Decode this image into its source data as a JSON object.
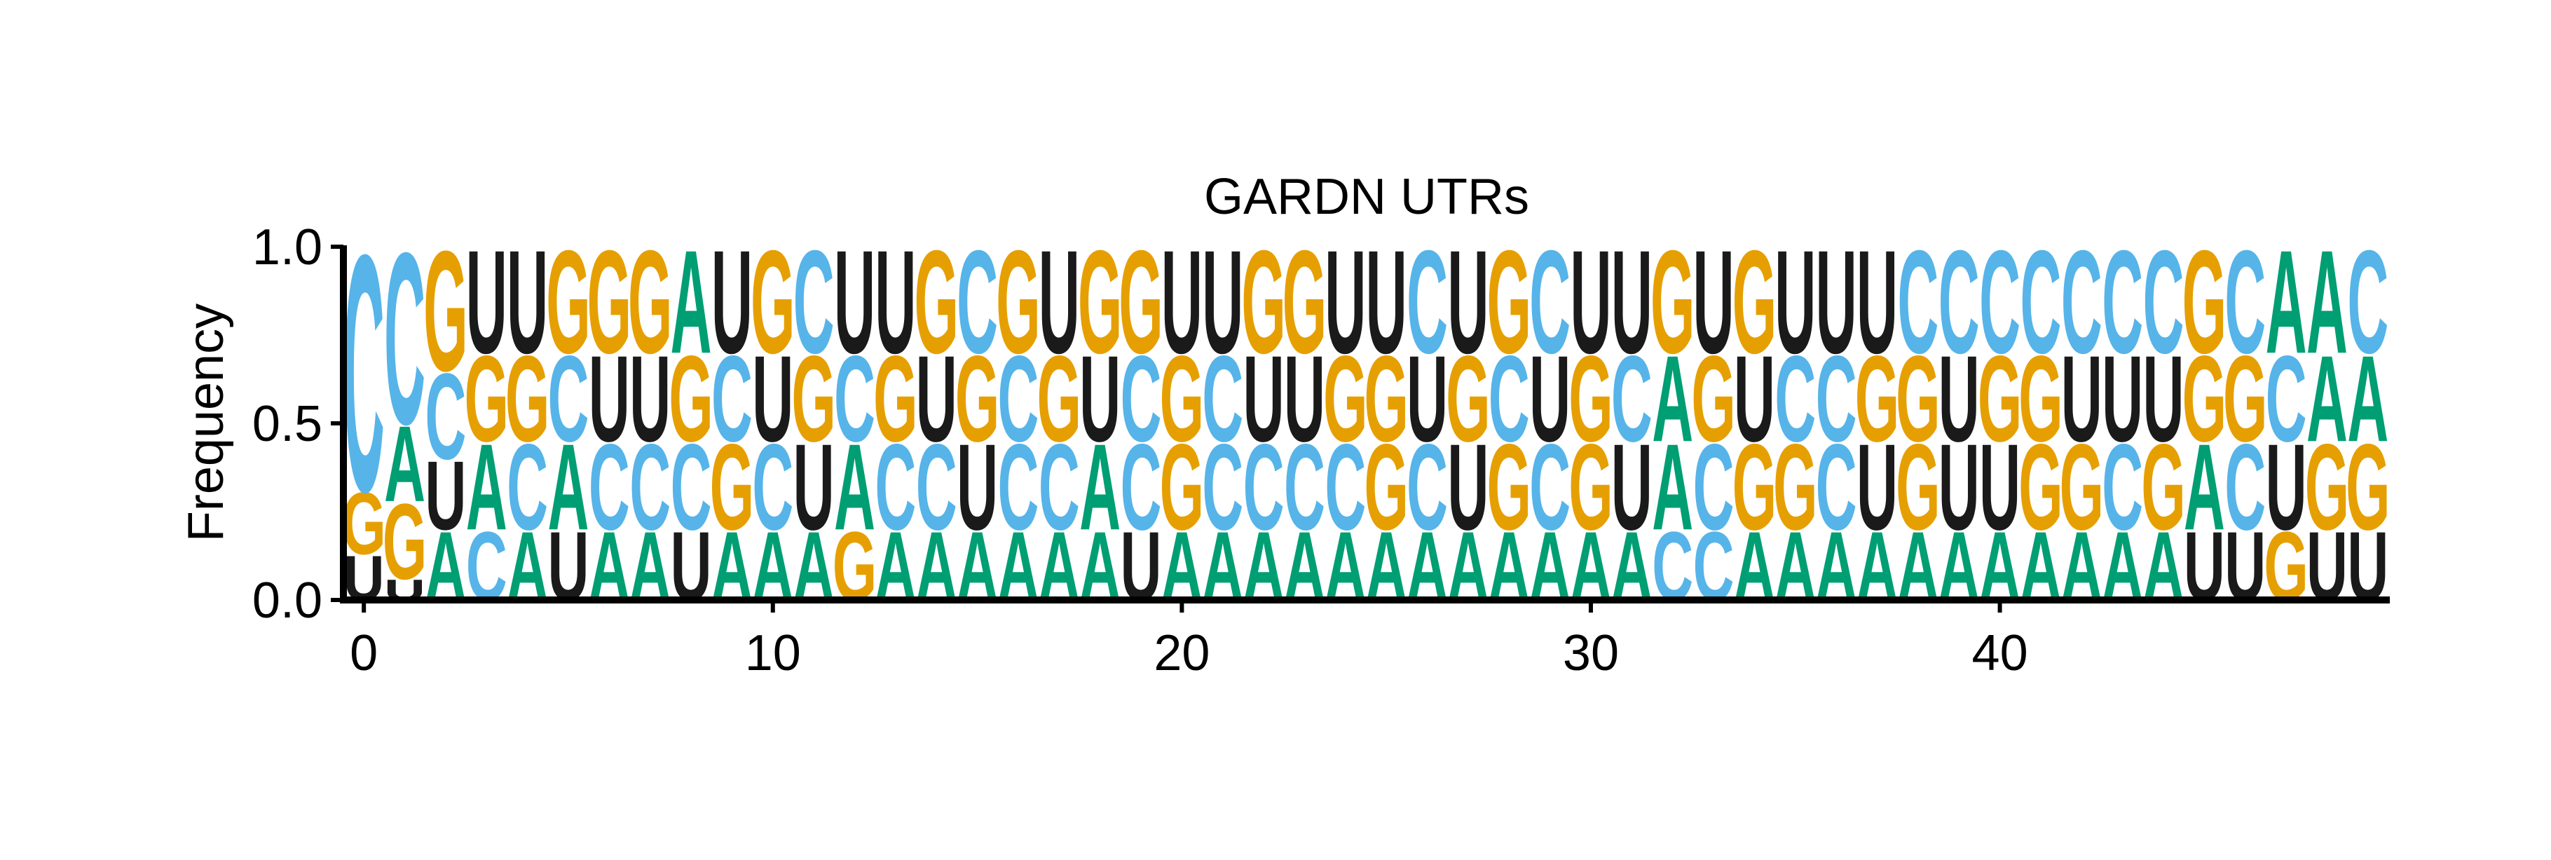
{
  "chart_data": {
    "type": "sequence-logo",
    "title": "GARDN UTRs",
    "xlabel": "",
    "ylabel": "Frequency",
    "ylim": [
      0,
      1
    ],
    "xlim": [
      -0.5,
      49.5
    ],
    "yticks": [
      "0.0",
      "0.5",
      "1.0"
    ],
    "xticks": [
      "0",
      "10",
      "20",
      "30",
      "40"
    ],
    "colors": {
      "A": "#009E73",
      "C": "#56B4E9",
      "G": "#E69F00",
      "U": "#1A1A1A"
    },
    "positions": [
      [
        [
          "U",
          0.13
        ],
        [
          "G",
          0.18
        ],
        [
          "C",
          0.69
        ]
      ],
      [
        [
          "U",
          0.06
        ],
        [
          "G",
          0.22
        ],
        [
          "A",
          0.22
        ],
        [
          "C",
          0.5
        ]
      ],
      [
        [
          "A",
          0.2
        ],
        [
          "U",
          0.2
        ],
        [
          "C",
          0.25
        ],
        [
          "G",
          0.35
        ]
      ],
      [
        [
          "C",
          0.2
        ],
        [
          "A",
          0.25
        ],
        [
          "G",
          0.25
        ],
        [
          "U",
          0.3
        ]
      ],
      [
        [
          "A",
          0.2
        ],
        [
          "C",
          0.25
        ],
        [
          "G",
          0.25
        ],
        [
          "U",
          0.3
        ]
      ],
      [
        [
          "U",
          0.2
        ],
        [
          "A",
          0.25
        ],
        [
          "C",
          0.25
        ],
        [
          "G",
          0.3
        ]
      ],
      [
        [
          "A",
          0.2
        ],
        [
          "C",
          0.25
        ],
        [
          "U",
          0.25
        ],
        [
          "G",
          0.3
        ]
      ],
      [
        [
          "A",
          0.2
        ],
        [
          "C",
          0.25
        ],
        [
          "U",
          0.25
        ],
        [
          "G",
          0.3
        ]
      ],
      [
        [
          "U",
          0.2
        ],
        [
          "C",
          0.25
        ],
        [
          "G",
          0.25
        ],
        [
          "A",
          0.3
        ]
      ],
      [
        [
          "A",
          0.2
        ],
        [
          "G",
          0.25
        ],
        [
          "C",
          0.25
        ],
        [
          "U",
          0.3
        ]
      ],
      [
        [
          "A",
          0.2
        ],
        [
          "C",
          0.25
        ],
        [
          "U",
          0.25
        ],
        [
          "G",
          0.3
        ]
      ],
      [
        [
          "A",
          0.2
        ],
        [
          "U",
          0.25
        ],
        [
          "G",
          0.25
        ],
        [
          "C",
          0.3
        ]
      ],
      [
        [
          "G",
          0.2
        ],
        [
          "A",
          0.25
        ],
        [
          "C",
          0.25
        ],
        [
          "U",
          0.3
        ]
      ],
      [
        [
          "A",
          0.2
        ],
        [
          "C",
          0.25
        ],
        [
          "G",
          0.25
        ],
        [
          "U",
          0.3
        ]
      ],
      [
        [
          "A",
          0.2
        ],
        [
          "C",
          0.25
        ],
        [
          "U",
          0.25
        ],
        [
          "G",
          0.3
        ]
      ],
      [
        [
          "A",
          0.2
        ],
        [
          "U",
          0.25
        ],
        [
          "G",
          0.25
        ],
        [
          "C",
          0.3
        ]
      ],
      [
        [
          "A",
          0.2
        ],
        [
          "C",
          0.25
        ],
        [
          "C",
          0.25
        ],
        [
          "G",
          0.3
        ]
      ],
      [
        [
          "A",
          0.2
        ],
        [
          "C",
          0.25
        ],
        [
          "G",
          0.25
        ],
        [
          "U",
          0.3
        ]
      ],
      [
        [
          "A",
          0.2
        ],
        [
          "A",
          0.25
        ],
        [
          "U",
          0.25
        ],
        [
          "G",
          0.3
        ]
      ],
      [
        [
          "U",
          0.2
        ],
        [
          "C",
          0.25
        ],
        [
          "C",
          0.25
        ],
        [
          "G",
          0.3
        ]
      ],
      [
        [
          "A",
          0.2
        ],
        [
          "G",
          0.25
        ],
        [
          "G",
          0.25
        ],
        [
          "U",
          0.3
        ]
      ],
      [
        [
          "A",
          0.2
        ],
        [
          "C",
          0.25
        ],
        [
          "C",
          0.25
        ],
        [
          "U",
          0.3
        ]
      ],
      [
        [
          "A",
          0.2
        ],
        [
          "C",
          0.25
        ],
        [
          "U",
          0.25
        ],
        [
          "G",
          0.3
        ]
      ],
      [
        [
          "A",
          0.2
        ],
        [
          "C",
          0.25
        ],
        [
          "U",
          0.25
        ],
        [
          "G",
          0.3
        ]
      ],
      [
        [
          "A",
          0.2
        ],
        [
          "C",
          0.25
        ],
        [
          "G",
          0.25
        ],
        [
          "U",
          0.3
        ]
      ],
      [
        [
          "A",
          0.2
        ],
        [
          "G",
          0.25
        ],
        [
          "G",
          0.25
        ],
        [
          "U",
          0.3
        ]
      ],
      [
        [
          "A",
          0.2
        ],
        [
          "C",
          0.25
        ],
        [
          "U",
          0.25
        ],
        [
          "C",
          0.3
        ]
      ],
      [
        [
          "A",
          0.2
        ],
        [
          "U",
          0.25
        ],
        [
          "G",
          0.25
        ],
        [
          "U",
          0.3
        ]
      ],
      [
        [
          "A",
          0.2
        ],
        [
          "G",
          0.25
        ],
        [
          "C",
          0.25
        ],
        [
          "G",
          0.3
        ]
      ],
      [
        [
          "A",
          0.2
        ],
        [
          "C",
          0.25
        ],
        [
          "U",
          0.25
        ],
        [
          "C",
          0.3
        ]
      ],
      [
        [
          "A",
          0.2
        ],
        [
          "G",
          0.25
        ],
        [
          "G",
          0.25
        ],
        [
          "U",
          0.3
        ]
      ],
      [
        [
          "A",
          0.2
        ],
        [
          "U",
          0.25
        ],
        [
          "C",
          0.25
        ],
        [
          "U",
          0.3
        ]
      ],
      [
        [
          "C",
          0.2
        ],
        [
          "A",
          0.25
        ],
        [
          "A",
          0.25
        ],
        [
          "G",
          0.3
        ]
      ],
      [
        [
          "C",
          0.2
        ],
        [
          "C",
          0.25
        ],
        [
          "G",
          0.25
        ],
        [
          "U",
          0.3
        ]
      ],
      [
        [
          "A",
          0.2
        ],
        [
          "G",
          0.25
        ],
        [
          "U",
          0.25
        ],
        [
          "G",
          0.3
        ]
      ],
      [
        [
          "A",
          0.2
        ],
        [
          "G",
          0.25
        ],
        [
          "C",
          0.25
        ],
        [
          "U",
          0.3
        ]
      ],
      [
        [
          "A",
          0.2
        ],
        [
          "C",
          0.25
        ],
        [
          "C",
          0.25
        ],
        [
          "U",
          0.3
        ]
      ],
      [
        [
          "A",
          0.2
        ],
        [
          "U",
          0.25
        ],
        [
          "G",
          0.25
        ],
        [
          "U",
          0.3
        ]
      ],
      [
        [
          "A",
          0.2
        ],
        [
          "G",
          0.25
        ],
        [
          "G",
          0.25
        ],
        [
          "C",
          0.3
        ]
      ],
      [
        [
          "A",
          0.2
        ],
        [
          "U",
          0.25
        ],
        [
          "U",
          0.25
        ],
        [
          "C",
          0.3
        ]
      ],
      [
        [
          "A",
          0.2
        ],
        [
          "U",
          0.25
        ],
        [
          "G",
          0.25
        ],
        [
          "C",
          0.3
        ]
      ],
      [
        [
          "A",
          0.2
        ],
        [
          "G",
          0.25
        ],
        [
          "G",
          0.25
        ],
        [
          "C",
          0.3
        ]
      ],
      [
        [
          "A",
          0.2
        ],
        [
          "G",
          0.25
        ],
        [
          "U",
          0.25
        ],
        [
          "C",
          0.3
        ]
      ],
      [
        [
          "A",
          0.2
        ],
        [
          "C",
          0.25
        ],
        [
          "U",
          0.25
        ],
        [
          "C",
          0.3
        ]
      ],
      [
        [
          "A",
          0.2
        ],
        [
          "G",
          0.25
        ],
        [
          "U",
          0.25
        ],
        [
          "C",
          0.3
        ]
      ],
      [
        [
          "U",
          0.2
        ],
        [
          "A",
          0.25
        ],
        [
          "G",
          0.25
        ],
        [
          "G",
          0.3
        ]
      ],
      [
        [
          "U",
          0.2
        ],
        [
          "C",
          0.25
        ],
        [
          "G",
          0.25
        ],
        [
          "C",
          0.3
        ]
      ],
      [
        [
          "G",
          0.2
        ],
        [
          "U",
          0.25
        ],
        [
          "C",
          0.25
        ],
        [
          "A",
          0.3
        ]
      ],
      [
        [
          "U",
          0.2
        ],
        [
          "G",
          0.25
        ],
        [
          "A",
          0.25
        ],
        [
          "A",
          0.3
        ]
      ],
      [
        [
          "U",
          0.2
        ],
        [
          "G",
          0.25
        ],
        [
          "A",
          0.25
        ],
        [
          "C",
          0.3
        ]
      ]
    ]
  }
}
